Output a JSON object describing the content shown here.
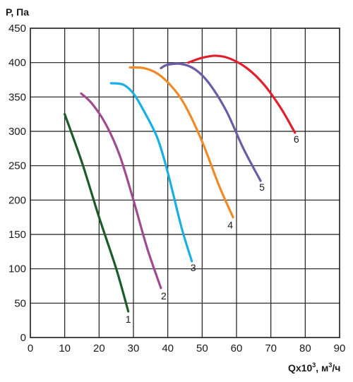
{
  "chart_data": {
    "type": "line",
    "title": "",
    "ylabel": "Р, Па",
    "xlabel": "Qх10³, м³/ч",
    "xlabel_main": "Qх10",
    "xlabel_sup": "3",
    "xlabel_unit": ", м",
    "xlabel_unit_sup": "3",
    "xlabel_tail": "/ч",
    "xlim": [
      0,
      90
    ],
    "ylim": [
      0,
      450
    ],
    "xticks": [
      0,
      10,
      20,
      30,
      40,
      50,
      60,
      70,
      80,
      90
    ],
    "yticks": [
      0,
      50,
      100,
      150,
      200,
      250,
      300,
      350,
      400,
      450
    ],
    "grid": true,
    "series": [
      {
        "name": "1",
        "color": "#1a5c2a",
        "x": [
          10,
          15,
          20,
          25,
          28.5
        ],
        "y": [
          325,
          255,
          175,
          100,
          38
        ]
      },
      {
        "name": "2",
        "color": "#a04a90",
        "x": [
          14.8,
          18,
          22,
          26,
          30,
          34,
          38
        ],
        "y": [
          355,
          340,
          310,
          265,
          200,
          130,
          72
        ]
      },
      {
        "name": "3",
        "color": "#18b0e4",
        "x": [
          23.5,
          27,
          30,
          33,
          37,
          40,
          44,
          47
        ],
        "y": [
          370,
          368,
          355,
          330,
          290,
          240,
          160,
          111
        ]
      },
      {
        "name": "4",
        "color": "#f08a28",
        "x": [
          29,
          33,
          37,
          41,
          45,
          50,
          55,
          59
        ],
        "y": [
          393,
          392,
          384,
          366,
          338,
          285,
          220,
          175
        ]
      },
      {
        "name": "5",
        "color": "#6c5ca8",
        "x": [
          38,
          40,
          44,
          48,
          52,
          57,
          62,
          67
        ],
        "y": [
          392,
          397,
          398,
          390,
          370,
          330,
          275,
          228
        ]
      },
      {
        "name": "6",
        "color": "#e21f2c",
        "x": [
          46,
          50,
          54,
          58,
          63,
          68,
          73,
          77
        ],
        "y": [
          400,
          407,
          410,
          406,
          392,
          368,
          333,
          298
        ]
      }
    ]
  }
}
